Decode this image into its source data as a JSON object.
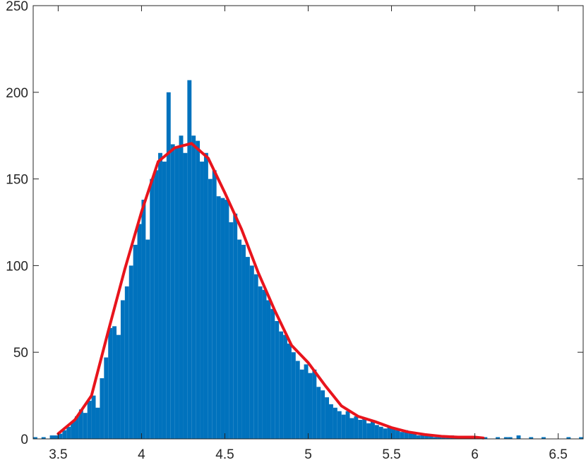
{
  "chart_data": {
    "type": "histogram",
    "color": "#0072bd",
    "bins": [
      3.35,
      3.375,
      3.4,
      3.425,
      3.45,
      3.475,
      3.5,
      3.525,
      3.55,
      3.575,
      3.6,
      3.625,
      3.65,
      3.675,
      3.7,
      3.725,
      3.75,
      3.775,
      3.8,
      3.825,
      3.85,
      3.875,
      3.9,
      3.925,
      3.95,
      3.975,
      4,
      4.025,
      4.05,
      4.075,
      4.1,
      4.125,
      4.15,
      4.175,
      4.2,
      4.225,
      4.25,
      4.275,
      4.3,
      4.325,
      4.35,
      4.375,
      4.4,
      4.425,
      4.45,
      4.475,
      4.5,
      4.525,
      4.55,
      4.575,
      4.6,
      4.625,
      4.65,
      4.675,
      4.7,
      4.725,
      4.75,
      4.775,
      4.8,
      4.825,
      4.85,
      4.875,
      4.9,
      4.925,
      4.95,
      4.975,
      5,
      5.025,
      5.05,
      5.075,
      5.1,
      5.125,
      5.15,
      5.175,
      5.2,
      5.225,
      5.25,
      5.275,
      5.3,
      5.325,
      5.35,
      5.375,
      5.4,
      5.425,
      5.45,
      5.475,
      5.5,
      5.525,
      5.55,
      5.575,
      5.6,
      5.625,
      5.65,
      5.675,
      5.7,
      5.725,
      5.75,
      5.775,
      5.8,
      5.825,
      5.85,
      5.875,
      5.9,
      5.925,
      5.95,
      5.975,
      6,
      6.025,
      6.05,
      6.075,
      6.1,
      6.125,
      6.15,
      6.175,
      6.2,
      6.225,
      6.25,
      6.275,
      6.3,
      6.325,
      6.35,
      6.375,
      6.4,
      6.425,
      6.45,
      6.475,
      6.5,
      6.525,
      6.55,
      6.575,
      6.6,
      6.625,
      6.65
    ],
    "values": [
      1,
      0,
      1,
      0,
      2,
      2,
      3,
      5,
      7,
      10,
      13,
      17,
      15,
      22,
      25,
      18,
      35,
      47,
      64,
      65,
      60,
      80,
      88,
      100,
      112,
      124,
      138,
      115,
      150,
      155,
      165,
      160,
      200,
      170,
      168,
      175,
      165,
      207,
      175,
      172,
      160,
      165,
      150,
      155,
      140,
      139,
      138,
      125,
      130,
      115,
      112,
      105,
      100,
      95,
      88,
      86,
      80,
      75,
      68,
      62,
      60,
      55,
      50,
      45,
      40,
      43,
      38,
      40,
      30,
      28,
      24,
      20,
      18,
      16,
      14,
      16,
      12,
      13,
      11,
      12,
      9,
      10,
      8,
      7,
      6,
      7,
      6,
      5,
      4,
      5,
      4,
      3,
      2,
      3,
      2,
      2,
      1,
      2,
      1,
      1,
      2,
      1,
      1,
      1,
      0,
      1,
      1,
      0,
      1,
      0,
      0,
      1,
      0,
      1,
      1,
      0,
      2,
      0,
      0,
      1,
      0,
      0,
      1,
      0,
      0,
      0,
      0,
      0,
      1,
      0,
      0,
      1
    ],
    "xlim": [
      3.35,
      6.65
    ],
    "ylim": [
      0,
      250
    ],
    "xticks": [
      3.5,
      4,
      4.5,
      5,
      5.5,
      6,
      6.5
    ],
    "yticks": [
      0,
      50,
      100,
      150,
      200,
      250
    ],
    "fit": {
      "type": "line",
      "color": "#e8141c",
      "x": [
        3.5,
        3.6,
        3.7,
        3.8,
        3.9,
        4.0,
        4.1,
        4.2,
        4.3,
        4.4,
        4.5,
        4.6,
        4.7,
        4.8,
        4.9,
        5.0,
        5.1,
        5.2,
        5.3,
        5.4,
        5.5,
        5.6,
        5.7,
        5.8,
        5.9,
        6.0,
        6.05
      ],
      "values": [
        3,
        11,
        25,
        62,
        98,
        131,
        160,
        168,
        170.5,
        162,
        142,
        121,
        96,
        74,
        54,
        44,
        31,
        19,
        13,
        10,
        6.5,
        4,
        2.5,
        1.5,
        1,
        1,
        0.5
      ]
    }
  }
}
